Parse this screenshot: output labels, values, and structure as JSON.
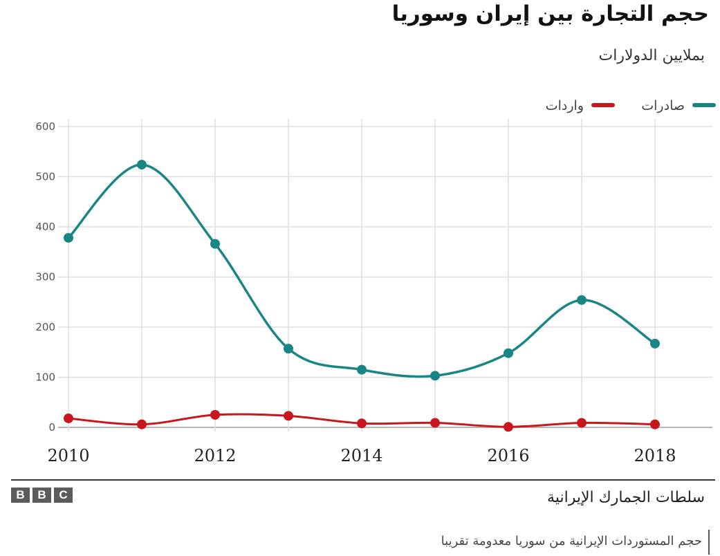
{
  "chart_data": {
    "type": "line",
    "title": "حجم التجارة بين إيران وسوريا",
    "subtitle": "بملايين الدولارات",
    "x": [
      2010,
      2011,
      2012,
      2013,
      2014,
      2015,
      2016,
      2017,
      2018
    ],
    "x_tick_labels": [
      "2010",
      "2012",
      "2014",
      "2016",
      "2018"
    ],
    "y_tick_labels": [
      "600",
      "500",
      "400",
      "300",
      "200",
      "100",
      "0"
    ],
    "ylim": [
      0,
      600
    ],
    "xlim": [
      2010,
      2018
    ],
    "grid": true,
    "legend_position": "top-right",
    "series": [
      {
        "name": "صادرات",
        "color": "#1a8585",
        "values": [
          378,
          524,
          366,
          157,
          115,
          103,
          148,
          254,
          167
        ]
      },
      {
        "name": "واردات",
        "color": "#c8161d",
        "values": [
          18,
          6,
          25,
          23,
          8,
          9,
          1,
          9,
          6
        ]
      }
    ],
    "source": "سلطات الجمارك الإيرانية"
  },
  "branding": {
    "logo_letters": [
      "B",
      "B",
      "C"
    ]
  },
  "caption": "حجم المستوردات الإيرانية من سوريا معدومة تقريبا"
}
